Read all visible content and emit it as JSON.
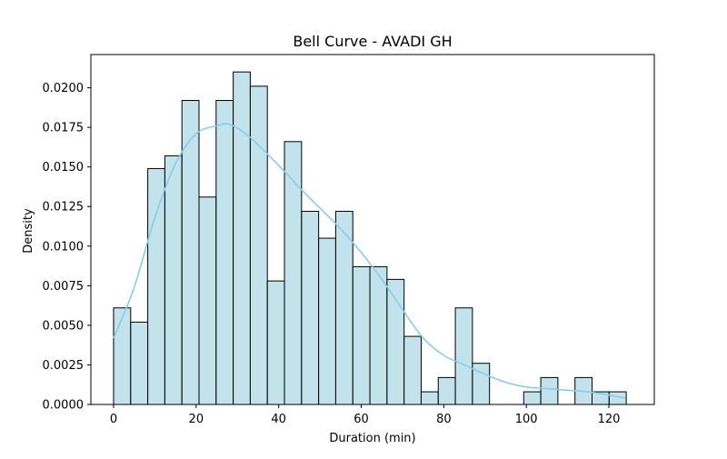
{
  "chart_data": {
    "type": "bar",
    "title": "Bell Curve - AVADI GH",
    "xlabel": "Duration (min)",
    "ylabel": "Density",
    "xlim": [
      -5.5,
      131
    ],
    "ylim": [
      0,
      0.0221
    ],
    "xticks": [
      0,
      20,
      40,
      60,
      80,
      100,
      120
    ],
    "yticks": [
      0.0,
      0.0025,
      0.005,
      0.0075,
      0.01,
      0.0125,
      0.015,
      0.0175,
      0.02
    ],
    "ytick_labels": [
      "0.0000",
      "0.0025",
      "0.0050",
      "0.0075",
      "0.0100",
      "0.0125",
      "0.0150",
      "0.0175",
      "0.0200"
    ],
    "xtick_labels": [
      "0",
      "20",
      "40",
      "60",
      "80",
      "100",
      "120"
    ],
    "grid": false,
    "bins": {
      "edges": [
        0,
        4.14,
        8.28,
        12.42,
        16.56,
        20.7,
        24.84,
        28.98,
        33.12,
        37.26,
        41.4,
        45.54,
        49.68,
        53.82,
        57.96,
        62.1,
        66.24,
        70.38,
        74.52,
        78.66,
        82.8,
        86.94,
        91.08,
        95.22,
        99.36,
        103.5,
        107.64,
        111.78,
        115.92,
        120.06,
        124.2
      ],
      "values": [
        0.0061,
        0.0052,
        0.0149,
        0.0157,
        0.0192,
        0.0131,
        0.0192,
        0.021,
        0.0201,
        0.0078,
        0.0166,
        0.0122,
        0.0105,
        0.0122,
        0.0087,
        0.0087,
        0.0079,
        0.0043,
        0.0008,
        0.0017,
        0.0061,
        0.0026,
        0,
        0,
        0.0008,
        0.0017,
        0,
        0.0017,
        0.0008,
        0.0008
      ],
      "fill": "#add8e6",
      "edge": "#000000"
    },
    "kde": {
      "color": "#87ceeb",
      "x": [
        0,
        5,
        10,
        15,
        20,
        25,
        28,
        32,
        35,
        40,
        45,
        50,
        55,
        60,
        65,
        70,
        75,
        80,
        85,
        90,
        95,
        100,
        105,
        110,
        115,
        120,
        124
      ],
      "y": [
        0.0042,
        0.0074,
        0.0118,
        0.0152,
        0.0171,
        0.0176,
        0.0177,
        0.0171,
        0.0164,
        0.0151,
        0.0137,
        0.0124,
        0.0111,
        0.0096,
        0.0079,
        0.006,
        0.0042,
        0.0031,
        0.0025,
        0.0019,
        0.0014,
        0.0011,
        0.001,
        0.0009,
        0.0008,
        0.0006,
        0.0004
      ]
    }
  }
}
